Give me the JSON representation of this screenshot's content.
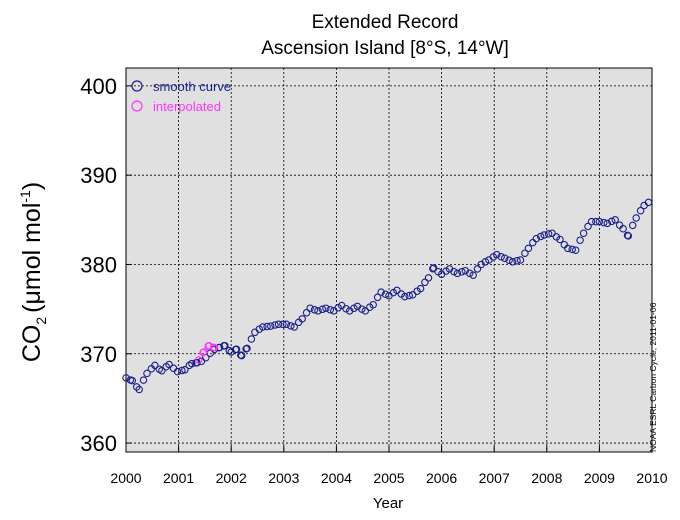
{
  "colors": {
    "smooth": "#1a1f8c",
    "interpolated": "#ff33ff",
    "panel": "#e0e0e0"
  },
  "chart_data": {
    "type": "scatter",
    "title": "Extended Record",
    "subtitle": "Ascension Island [8°S, 14°W]",
    "ylabel": "CO",
    "ylabel_sub": "2",
    "ylabel_unit": "(μmol mol",
    "ylabel_sup": "-1",
    "ylabel_close": ")",
    "xlabel": "Year",
    "xlim": [
      2000,
      2010
    ],
    "ylim": [
      359,
      402
    ],
    "yticks": [
      "360",
      "370",
      "380",
      "390",
      "400"
    ],
    "xticks": [
      "2000",
      "2001",
      "2002",
      "2003",
      "2004",
      "2005",
      "2006",
      "2007",
      "2008",
      "2009",
      "2010"
    ],
    "grid": true,
    "legend_position": "top-left",
    "credit": "NOAA ESRL Carbon Cycle, 2011-01-06",
    "series": [
      {
        "name": "smooth curve",
        "color": "#1a1f8c",
        "points": [
          [
            2000.0,
            367.3
          ],
          [
            2000.12,
            367.0
          ],
          [
            2000.25,
            366.0
          ],
          [
            2000.4,
            367.8
          ],
          [
            2000.55,
            368.7
          ],
          [
            2000.68,
            368.1
          ],
          [
            2000.82,
            368.8
          ],
          [
            2000.98,
            368.0
          ],
          [
            2001.12,
            368.2
          ],
          [
            2001.25,
            368.9
          ],
          [
            2001.35,
            369.0
          ],
          [
            2001.78,
            370.7
          ],
          [
            2001.88,
            370.9
          ],
          [
            2002.0,
            370.2
          ],
          [
            2002.1,
            370.5
          ],
          [
            2002.2,
            369.8
          ],
          [
            2002.3,
            370.6
          ],
          [
            2002.45,
            372.4
          ],
          [
            2002.6,
            373.0
          ],
          [
            2002.75,
            373.1
          ],
          [
            2002.9,
            373.3
          ],
          [
            2003.05,
            373.3
          ],
          [
            2003.2,
            373.0
          ],
          [
            2003.35,
            373.9
          ],
          [
            2003.5,
            375.1
          ],
          [
            2003.65,
            374.8
          ],
          [
            2003.8,
            375.1
          ],
          [
            2003.95,
            374.8
          ],
          [
            2004.1,
            375.4
          ],
          [
            2004.25,
            374.8
          ],
          [
            2004.4,
            375.3
          ],
          [
            2004.55,
            374.8
          ],
          [
            2004.7,
            375.5
          ],
          [
            2004.85,
            376.9
          ],
          [
            2005.0,
            376.5
          ],
          [
            2005.15,
            377.1
          ],
          [
            2005.3,
            376.4
          ],
          [
            2005.45,
            376.6
          ],
          [
            2005.6,
            377.3
          ],
          [
            2005.75,
            378.5
          ],
          [
            2005.85,
            379.6
          ],
          [
            2006.0,
            378.9
          ],
          [
            2006.15,
            379.5
          ],
          [
            2006.3,
            379.0
          ],
          [
            2006.45,
            379.3
          ],
          [
            2006.6,
            378.8
          ],
          [
            2006.75,
            380.0
          ],
          [
            2006.9,
            380.5
          ],
          [
            2007.05,
            381.1
          ],
          [
            2007.2,
            380.7
          ],
          [
            2007.35,
            380.3
          ],
          [
            2007.5,
            380.5
          ],
          [
            2007.65,
            381.8
          ],
          [
            2007.8,
            382.9
          ],
          [
            2007.95,
            383.3
          ],
          [
            2008.1,
            383.5
          ],
          [
            2008.25,
            382.8
          ],
          [
            2008.4,
            381.8
          ],
          [
            2008.55,
            381.6
          ],
          [
            2008.7,
            383.5
          ],
          [
            2008.85,
            384.8
          ],
          [
            2009.0,
            384.8
          ],
          [
            2009.15,
            384.6
          ],
          [
            2009.3,
            385.0
          ],
          [
            2009.45,
            384.0
          ],
          [
            2009.55,
            383.2
          ],
          [
            2009.7,
            385.2
          ],
          [
            2009.85,
            386.6
          ],
          [
            2010.0,
            387.2
          ],
          [
            2010.15,
            386.8
          ],
          [
            2010.3,
            386.2
          ],
          [
            2010.4,
            386.1
          ]
        ]
      },
      {
        "name": "interpolated",
        "color": "#ff33ff",
        "points": [
          [
            2001.38,
            369.3
          ],
          [
            2001.48,
            370.2
          ],
          [
            2001.58,
            370.9
          ],
          [
            2001.68,
            370.7
          ],
          [
            2001.76,
            370.5
          ]
        ]
      }
    ]
  }
}
